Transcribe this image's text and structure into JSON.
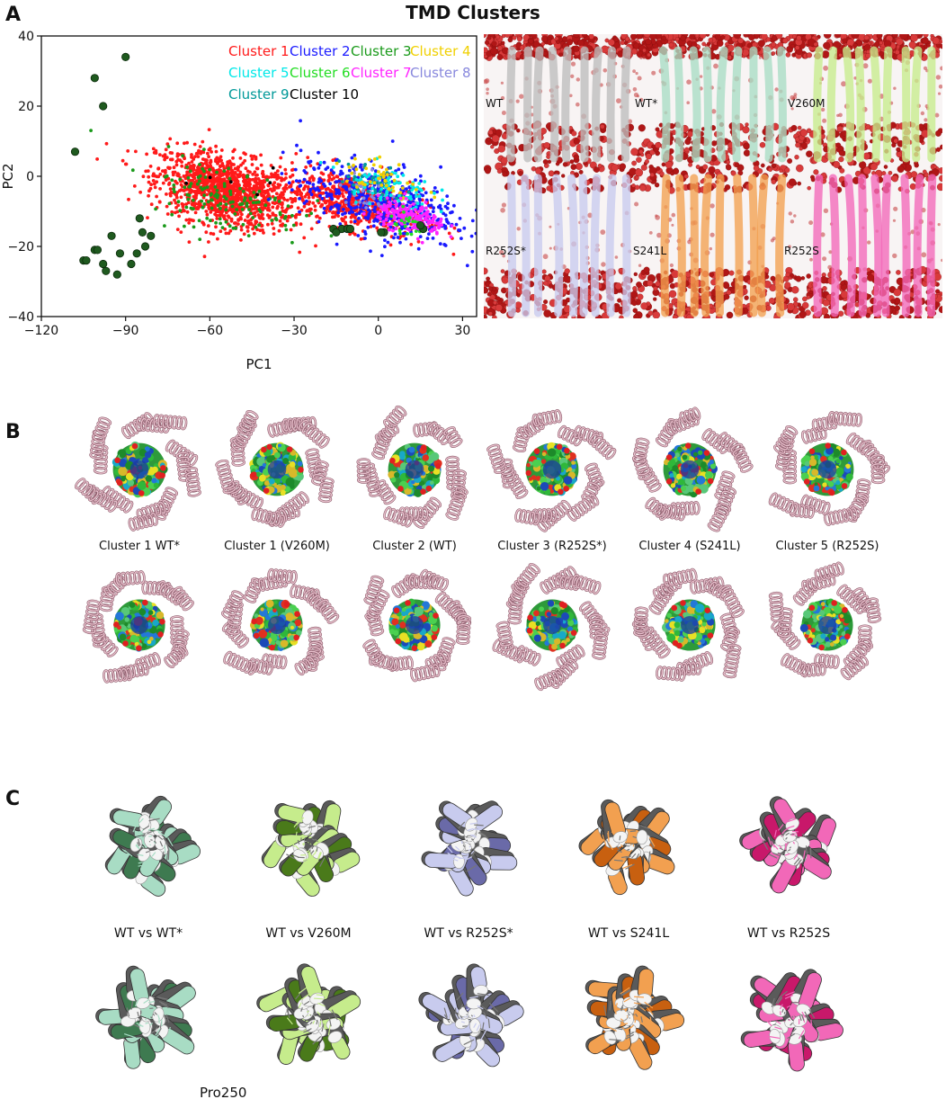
{
  "figure": {
    "title": "TMD Clusters",
    "panels": {
      "a": "A",
      "b": "B",
      "c": "C"
    },
    "colors": {
      "cluster_1": "#ff1a1a",
      "cluster_2": "#1a1aff",
      "cluster_3": "#1a9a1a",
      "cluster_4": "#f0d000",
      "cluster_5": "#00e8e8",
      "cluster_6": "#22dd22",
      "cluster_7": "#ff22ff",
      "cluster_8": "#8888dd",
      "cluster_9": "#009999",
      "cluster_10": "#000000",
      "outlier": "#1f5a1f",
      "wt_grey": "#bcbcbc",
      "wt_star_teal": "#a8dcc4",
      "v260m_lime": "#c6ec8c",
      "r252s_star_lavender": "#c8cbee",
      "s241l_orange": "#f2a050",
      "r252s_pink": "#f268b8",
      "lipid_red": "#c81e1e"
    }
  },
  "md_snapshots": {
    "labels": [
      "WT",
      "WT*",
      "V260M",
      "R252S*",
      "S241L",
      "R252S"
    ]
  },
  "panel_b": {
    "captions": [
      "Cluster 1 WT*",
      "Cluster 1 (V260M)",
      "Cluster 2 (WT)",
      "Cluster 3 (R252S*)",
      "Cluster 4 (S241L)",
      "Cluster 5 (R252S)"
    ]
  },
  "panel_c": {
    "captions": [
      "WT vs WT*",
      "WT vs V260M",
      "WT vs R252S*",
      "WT vs S241L",
      "WT vs R252S"
    ],
    "annotation": "Pro250"
  },
  "chart_data": {
    "type": "scatter",
    "xlabel": "PC1",
    "ylabel": "PC2",
    "xlim": [
      -120,
      35
    ],
    "ylim": [
      -40,
      40
    ],
    "xticks": [
      -120,
      -90,
      -60,
      -30,
      0,
      30
    ],
    "yticks": [
      -40,
      -20,
      0,
      20,
      40
    ],
    "legend_position": "top-right",
    "legend": [
      "Cluster 1",
      "Cluster 2",
      "Cluster 3",
      "Cluster 4",
      "Cluster 5",
      "Cluster 6",
      "Cluster 7",
      "Cluster 8",
      "Cluster 9",
      "Cluster 10"
    ],
    "series": [
      {
        "name": "Cluster 1",
        "color": "#ff1a1a",
        "clouds": [
          {
            "cx": -55,
            "cy": -4,
            "sx": 12,
            "sy": 5,
            "n": 1200
          },
          {
            "cx": -10,
            "cy": -7,
            "sx": 13,
            "sy": 4,
            "n": 600
          }
        ]
      },
      {
        "name": "Cluster 2",
        "color": "#1a1aff",
        "clouds": [
          {
            "cx": 0,
            "cy": -7,
            "sx": 14,
            "sy": 5,
            "n": 500
          }
        ]
      },
      {
        "name": "Cluster 3",
        "color": "#1a9a1a",
        "clouds": [
          {
            "cx": -55,
            "cy": -6,
            "sx": 14,
            "sy": 5,
            "n": 150
          }
        ]
      },
      {
        "name": "Cluster 4",
        "color": "#f0d000",
        "clouds": [
          {
            "cx": 2,
            "cy": -1,
            "sx": 7,
            "sy": 3,
            "n": 50
          }
        ]
      },
      {
        "name": "Cluster 5",
        "color": "#00e8e8",
        "clouds": [
          {
            "cx": 3,
            "cy": -3,
            "sx": 8,
            "sy": 3,
            "n": 80
          }
        ]
      },
      {
        "name": "Cluster 6",
        "color": "#22dd22",
        "clouds": [
          {
            "cx": 10,
            "cy": -14,
            "sx": 3,
            "sy": 2,
            "n": 20
          }
        ]
      },
      {
        "name": "Cluster 7",
        "color": "#ff22ff",
        "clouds": [
          {
            "cx": 12,
            "cy": -12,
            "sx": 6,
            "sy": 2,
            "n": 200
          }
        ]
      },
      {
        "name": "Cluster 8",
        "color": "#8888dd",
        "clouds": [
          {
            "cx": -2,
            "cy": -4,
            "sx": 6,
            "sy": 3,
            "n": 40
          }
        ]
      },
      {
        "name": "Cluster 9",
        "color": "#009999",
        "clouds": [
          {
            "cx": -2,
            "cy": -2,
            "sx": 6,
            "sy": 3,
            "n": 40
          }
        ]
      },
      {
        "name": "Cluster 10",
        "color": "#000000",
        "clouds": [
          {
            "cx": -50,
            "cy": 0,
            "sx": 10,
            "sy": 3,
            "n": 6
          }
        ]
      },
      {
        "name": "",
        "color": "#1f5a1f",
        "points": [
          [
            -90,
            34
          ],
          [
            -101,
            28
          ],
          [
            -98,
            20
          ],
          [
            -108,
            7
          ],
          [
            -85,
            -12
          ],
          [
            -84,
            -16
          ],
          [
            -95,
            -17
          ],
          [
            -81,
            -17
          ],
          [
            -83,
            -20
          ],
          [
            -101,
            -21
          ],
          [
            -100,
            -21
          ],
          [
            -86,
            -22
          ],
          [
            -92,
            -22
          ],
          [
            -105,
            -24
          ],
          [
            -104,
            -24
          ],
          [
            -98,
            -25
          ],
          [
            -88,
            -25
          ],
          [
            -97,
            -27
          ],
          [
            -93,
            -28
          ],
          [
            -16,
            -15
          ],
          [
            -13,
            -15
          ],
          [
            -11,
            -15
          ],
          [
            -10,
            -15
          ],
          [
            2,
            -16
          ],
          [
            16,
            -15
          ],
          [
            -15,
            -16
          ],
          [
            1,
            -16
          ],
          [
            15,
            -14
          ]
        ]
      }
    ]
  }
}
